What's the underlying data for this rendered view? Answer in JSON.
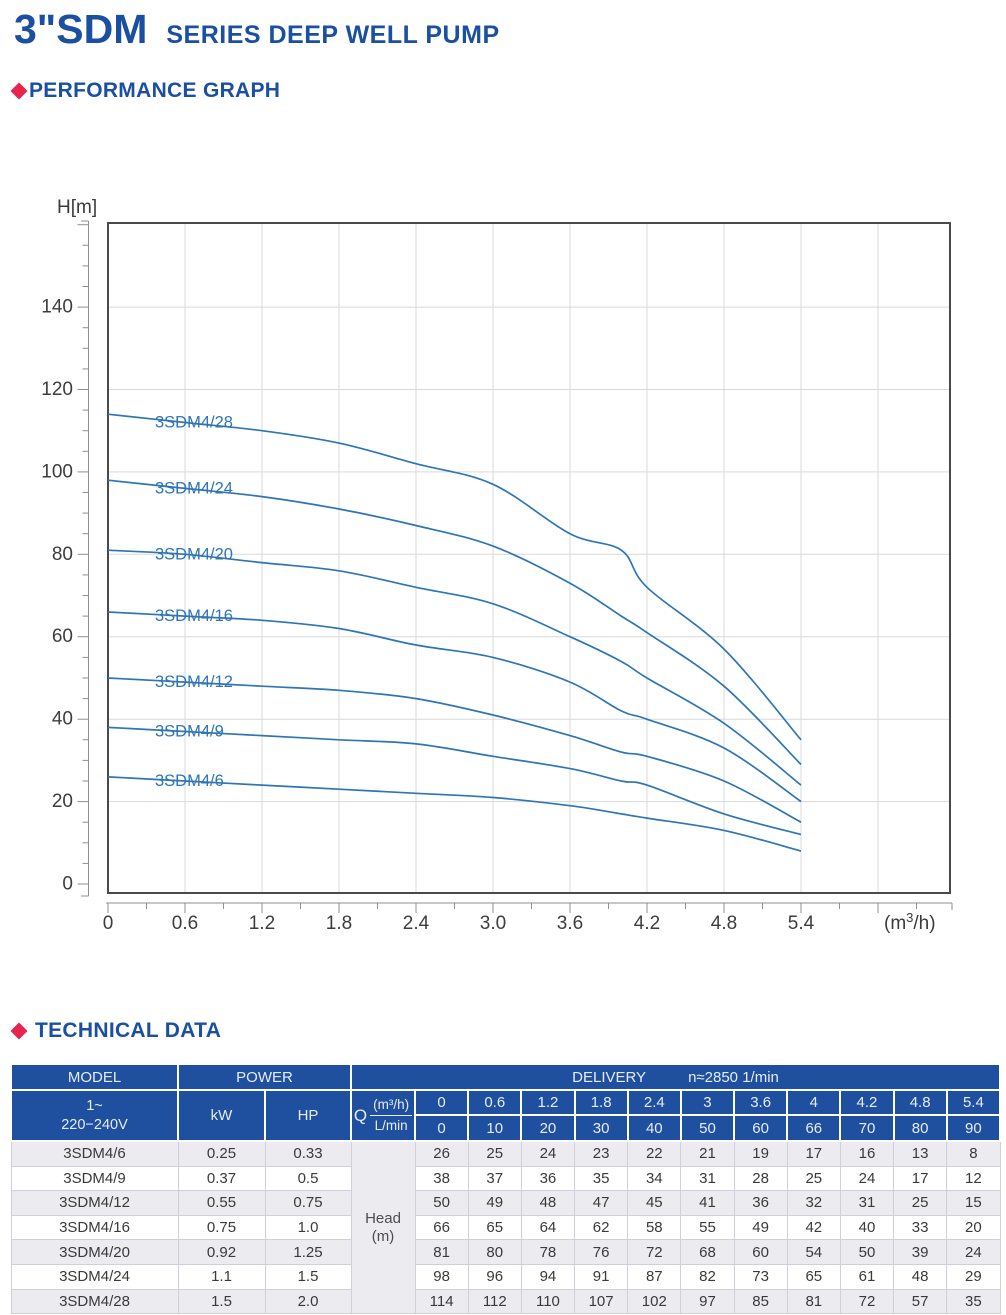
{
  "header": {
    "title_main": "3\"SDM",
    "title_sub": "SERIES DEEP WELL PUMP"
  },
  "sections": {
    "performance": "PERFORMANCE GRAPH",
    "technical": "TECHNICAL DATA"
  },
  "colors": {
    "brand_blue": "#1b4fa2",
    "accent_red": "#e8234e",
    "curve_blue": "#2e75b5",
    "table_header_bg": "#1f4f9f",
    "grid_gray": "#d9d9d9"
  },
  "chart_data": {
    "type": "line",
    "title": "",
    "ylabel": "H[m]",
    "xlabel": "(m³/h)",
    "x": [
      0,
      0.6,
      1.2,
      1.8,
      2.4,
      3,
      3.6,
      4,
      4.2,
      4.8,
      5.4
    ],
    "series": [
      {
        "name": "3SDM4/28",
        "values": [
          114,
          112,
          110,
          107,
          102,
          97,
          85,
          81,
          72,
          57,
          35
        ]
      },
      {
        "name": "3SDM4/24",
        "values": [
          98,
          96,
          94,
          91,
          87,
          82,
          73,
          65,
          61,
          48,
          29
        ]
      },
      {
        "name": "3SDM4/20",
        "values": [
          81,
          80,
          78,
          76,
          72,
          68,
          60,
          54,
          50,
          39,
          24
        ]
      },
      {
        "name": "3SDM4/16",
        "values": [
          66,
          65,
          64,
          62,
          58,
          55,
          49,
          42,
          40,
          33,
          20
        ]
      },
      {
        "name": "3SDM4/12",
        "values": [
          50,
          49,
          48,
          47,
          45,
          41,
          36,
          32,
          31,
          25,
          15
        ]
      },
      {
        "name": "3SDM4/9",
        "values": [
          38,
          37,
          36,
          35,
          34,
          31,
          28,
          25,
          24,
          17,
          12
        ]
      },
      {
        "name": "3SDM4/6",
        "values": [
          26,
          25,
          24,
          23,
          22,
          21,
          19,
          17,
          16,
          13,
          8
        ]
      }
    ],
    "xlim": [
      0,
      6.56
    ],
    "ylim": [
      -2.2,
      160.4
    ],
    "x_tick_major": 0.6,
    "x_tick_minor": 0.3,
    "y_tick_major": 20,
    "y_tick_minor": 5,
    "x_tick_labels": [
      "0",
      "0.6",
      "1.2",
      "1.8",
      "2.4",
      "3.0",
      "3.6",
      "4.2",
      "4.8",
      "5.4"
    ],
    "y_tick_labels": [
      "0",
      "20",
      "40",
      "60",
      "80",
      "100",
      "120",
      "140"
    ],
    "grid": true,
    "legend_position": "on-curve-labels"
  },
  "table": {
    "col_model": "MODEL",
    "col_power": "POWER",
    "col_delivery": "DELIVERY",
    "speed": "n≈2850 1/min",
    "voltage_line1": "1~",
    "voltage_line2": "220−240V",
    "kw": "kW",
    "hp": "HP",
    "q_label": "Q",
    "q_num": "(m³/h)",
    "q_den": "L/min",
    "q_values": [
      "0",
      "0.6",
      "1.2",
      "1.8",
      "2.4",
      "3",
      "3.6",
      "4",
      "4.2",
      "4.8",
      "5.4"
    ],
    "lmin_values": [
      "0",
      "10",
      "20",
      "30",
      "40",
      "50",
      "60",
      "66",
      "70",
      "80",
      "90"
    ],
    "head_label_1": "Head",
    "head_label_2": "(m)",
    "rows": [
      {
        "model": "3SDM4/6",
        "kw": "0.25",
        "hp": "0.33",
        "head": [
          "26",
          "25",
          "24",
          "23",
          "22",
          "21",
          "19",
          "17",
          "16",
          "13",
          "8"
        ]
      },
      {
        "model": "3SDM4/9",
        "kw": "0.37",
        "hp": "0.5",
        "head": [
          "38",
          "37",
          "36",
          "35",
          "34",
          "31",
          "28",
          "25",
          "24",
          "17",
          "12"
        ]
      },
      {
        "model": "3SDM4/12",
        "kw": "0.55",
        "hp": "0.75",
        "head": [
          "50",
          "49",
          "48",
          "47",
          "45",
          "41",
          "36",
          "32",
          "31",
          "25",
          "15"
        ]
      },
      {
        "model": "3SDM4/16",
        "kw": "0.75",
        "hp": "1.0",
        "head": [
          "66",
          "65",
          "64",
          "62",
          "58",
          "55",
          "49",
          "42",
          "40",
          "33",
          "20"
        ]
      },
      {
        "model": "3SDM4/20",
        "kw": "0.92",
        "hp": "1.25",
        "head": [
          "81",
          "80",
          "78",
          "76",
          "72",
          "68",
          "60",
          "54",
          "50",
          "39",
          "24"
        ]
      },
      {
        "model": "3SDM4/24",
        "kw": "1.1",
        "hp": "1.5",
        "head": [
          "98",
          "96",
          "94",
          "91",
          "87",
          "82",
          "73",
          "65",
          "61",
          "48",
          "29"
        ]
      },
      {
        "model": "3SDM4/28",
        "kw": "1.5",
        "hp": "2.0",
        "head": [
          "114",
          "112",
          "110",
          "107",
          "102",
          "97",
          "85",
          "81",
          "72",
          "57",
          "35"
        ]
      }
    ]
  }
}
